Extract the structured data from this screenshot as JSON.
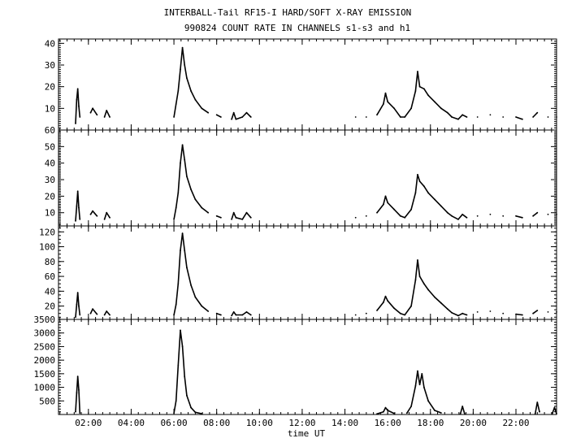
{
  "figure": {
    "title": "INTERBALL-Tail RF15-I HARD/SOFT X-RAY EMISSION",
    "subtitle": "990824  COUNT RATE IN CHANNELS s1-s3 and h1",
    "xlabel": "time UT",
    "x_ticks": [
      "02:00",
      "04:00",
      "06:00",
      "08:00",
      "10:00",
      "12:00",
      "14:00",
      "16:00",
      "18:00",
      "20:00",
      "22:00"
    ]
  },
  "chart_data": [
    {
      "type": "line",
      "panel": "s1",
      "xlim": [
        0.6,
        23.9
      ],
      "ylim": [
        0,
        42
      ],
      "yticks": [
        10,
        20,
        30,
        40
      ],
      "ytick_labels": [
        "10",
        "20",
        "30",
        "40"
      ],
      "grid": false,
      "series": [
        {
          "color": "#000000",
          "points": [
            [
              1.4,
              3
            ],
            [
              1.45,
              14
            ],
            [
              1.5,
              19
            ],
            [
              1.55,
              11
            ],
            [
              1.6,
              6
            ],
            [
              2.1,
              8
            ],
            [
              2.2,
              10
            ],
            [
              2.4,
              7
            ],
            [
              2.75,
              6
            ],
            [
              2.85,
              9
            ],
            [
              3.0,
              6
            ],
            [
              6.0,
              6
            ],
            [
              6.1,
              12
            ],
            [
              6.2,
              18
            ],
            [
              6.3,
              28
            ],
            [
              6.4,
              38
            ],
            [
              6.5,
              30
            ],
            [
              6.6,
              24
            ],
            [
              6.8,
              18
            ],
            [
              7.0,
              14
            ],
            [
              7.3,
              10
            ],
            [
              7.6,
              8
            ],
            [
              8.0,
              7
            ],
            [
              8.2,
              6
            ],
            [
              8.7,
              5
            ],
            [
              8.8,
              8
            ],
            [
              8.9,
              5
            ],
            [
              9.2,
              6
            ],
            [
              9.4,
              8
            ],
            [
              9.6,
              6
            ],
            [
              14.5,
              6
            ],
            [
              15.0,
              6
            ],
            [
              15.5,
              7
            ],
            [
              15.8,
              12
            ],
            [
              15.9,
              17
            ],
            [
              16.0,
              13
            ],
            [
              16.3,
              10
            ],
            [
              16.6,
              6
            ],
            [
              16.8,
              6
            ],
            [
              17.1,
              10
            ],
            [
              17.3,
              18
            ],
            [
              17.4,
              27
            ],
            [
              17.5,
              20
            ],
            [
              17.7,
              19
            ],
            [
              17.9,
              16
            ],
            [
              18.2,
              13
            ],
            [
              18.5,
              10
            ],
            [
              18.8,
              8
            ],
            [
              19.0,
              6
            ],
            [
              19.3,
              5
            ],
            [
              19.5,
              7
            ],
            [
              19.7,
              6
            ],
            [
              20.2,
              6
            ],
            [
              20.8,
              7
            ],
            [
              21.4,
              6
            ],
            [
              22.0,
              6
            ],
            [
              22.3,
              5
            ],
            [
              22.8,
              6
            ],
            [
              23.0,
              8
            ],
            [
              23.5,
              6
            ],
            [
              23.9,
              6
            ]
          ]
        }
      ]
    },
    {
      "type": "line",
      "panel": "s2",
      "xlim": [
        0.6,
        23.9
      ],
      "ylim": [
        2,
        60
      ],
      "yticks": [
        10,
        20,
        30,
        40,
        50,
        60
      ],
      "ytick_labels": [
        "10",
        "20",
        "30",
        "40",
        "50",
        "60"
      ],
      "grid": false,
      "series": [
        {
          "color": "#000000",
          "points": [
            [
              1.4,
              5
            ],
            [
              1.45,
              14
            ],
            [
              1.5,
              23
            ],
            [
              1.55,
              13
            ],
            [
              1.6,
              6
            ],
            [
              2.1,
              9
            ],
            [
              2.2,
              11
            ],
            [
              2.4,
              8
            ],
            [
              2.75,
              6
            ],
            [
              2.85,
              10
            ],
            [
              3.0,
              7
            ],
            [
              6.0,
              6
            ],
            [
              6.1,
              13
            ],
            [
              6.2,
              22
            ],
            [
              6.3,
              40
            ],
            [
              6.4,
              51
            ],
            [
              6.5,
              42
            ],
            [
              6.6,
              32
            ],
            [
              6.8,
              24
            ],
            [
              7.0,
              18
            ],
            [
              7.3,
              13
            ],
            [
              7.6,
              10
            ],
            [
              8.0,
              8
            ],
            [
              8.2,
              7
            ],
            [
              8.7,
              6
            ],
            [
              8.8,
              10
            ],
            [
              8.9,
              7
            ],
            [
              9.2,
              6
            ],
            [
              9.4,
              10
            ],
            [
              9.6,
              7
            ],
            [
              14.5,
              7
            ],
            [
              15.0,
              8
            ],
            [
              15.5,
              10
            ],
            [
              15.8,
              15
            ],
            [
              15.9,
              20
            ],
            [
              16.0,
              16
            ],
            [
              16.3,
              12
            ],
            [
              16.6,
              8
            ],
            [
              16.8,
              7
            ],
            [
              17.1,
              12
            ],
            [
              17.3,
              22
            ],
            [
              17.4,
              33
            ],
            [
              17.5,
              29
            ],
            [
              17.7,
              26
            ],
            [
              17.9,
              22
            ],
            [
              18.2,
              18
            ],
            [
              18.5,
              14
            ],
            [
              18.8,
              10
            ],
            [
              19.0,
              8
            ],
            [
              19.3,
              6
            ],
            [
              19.5,
              9
            ],
            [
              19.7,
              7
            ],
            [
              20.2,
              8
            ],
            [
              20.8,
              9
            ],
            [
              21.4,
              8
            ],
            [
              22.0,
              8
            ],
            [
              22.3,
              7
            ],
            [
              22.8,
              8
            ],
            [
              23.0,
              10
            ],
            [
              23.5,
              9
            ],
            [
              23.9,
              9
            ]
          ]
        }
      ]
    },
    {
      "type": "line",
      "panel": "s3",
      "xlim": [
        0.6,
        23.9
      ],
      "ylim": [
        2,
        128
      ],
      "yticks": [
        20,
        40,
        60,
        80,
        100,
        120
      ],
      "ytick_labels": [
        "20",
        "40",
        "60",
        "80",
        "100",
        "120"
      ],
      "grid": false,
      "series": [
        {
          "color": "#000000",
          "points": [
            [
              1.4,
              5
            ],
            [
              1.45,
              22
            ],
            [
              1.5,
              38
            ],
            [
              1.55,
              20
            ],
            [
              1.6,
              8
            ],
            [
              2.1,
              10
            ],
            [
              2.2,
              16
            ],
            [
              2.4,
              9
            ],
            [
              2.75,
              8
            ],
            [
              2.85,
              13
            ],
            [
              3.0,
              8
            ],
            [
              6.0,
              8
            ],
            [
              6.1,
              22
            ],
            [
              6.2,
              50
            ],
            [
              6.3,
              95
            ],
            [
              6.4,
              118
            ],
            [
              6.5,
              95
            ],
            [
              6.6,
              72
            ],
            [
              6.8,
              48
            ],
            [
              7.0,
              32
            ],
            [
              7.3,
              20
            ],
            [
              7.6,
              13
            ],
            [
              8.0,
              10
            ],
            [
              8.2,
              8
            ],
            [
              8.7,
              7
            ],
            [
              8.8,
              12
            ],
            [
              8.9,
              8
            ],
            [
              9.2,
              8
            ],
            [
              9.4,
              12
            ],
            [
              9.6,
              8
            ],
            [
              14.5,
              8
            ],
            [
              15.0,
              10
            ],
            [
              15.5,
              14
            ],
            [
              15.8,
              25
            ],
            [
              15.9,
              33
            ],
            [
              16.0,
              27
            ],
            [
              16.3,
              17
            ],
            [
              16.6,
              10
            ],
            [
              16.8,
              8
            ],
            [
              17.1,
              20
            ],
            [
              17.3,
              55
            ],
            [
              17.4,
              82
            ],
            [
              17.5,
              60
            ],
            [
              17.7,
              50
            ],
            [
              17.9,
              42
            ],
            [
              18.2,
              32
            ],
            [
              18.5,
              24
            ],
            [
              18.8,
              16
            ],
            [
              19.0,
              11
            ],
            [
              19.3,
              7
            ],
            [
              19.5,
              10
            ],
            [
              19.7,
              8
            ],
            [
              20.2,
              12
            ],
            [
              20.8,
              13
            ],
            [
              21.4,
              10
            ],
            [
              22.0,
              9
            ],
            [
              22.3,
              8
            ],
            [
              22.8,
              10
            ],
            [
              23.0,
              14
            ],
            [
              23.5,
              12
            ],
            [
              23.9,
              12
            ]
          ]
        }
      ]
    },
    {
      "type": "line",
      "panel": "h1",
      "xlim": [
        0.6,
        23.9
      ],
      "ylim": [
        0,
        3500
      ],
      "yticks": [
        500,
        1000,
        1500,
        2000,
        2500,
        3000,
        3500
      ],
      "ytick_labels": [
        "500",
        "1000",
        "1500",
        "2000",
        "2500",
        "3000",
        "3500"
      ],
      "grid": false,
      "series": [
        {
          "color": "#000000",
          "points": [
            [
              1.4,
              100
            ],
            [
              1.45,
              800
            ],
            [
              1.5,
              1400
            ],
            [
              1.55,
              900
            ],
            [
              1.6,
              50
            ],
            [
              6.0,
              50
            ],
            [
              6.1,
              500
            ],
            [
              6.2,
              1800
            ],
            [
              6.3,
              3100
            ],
            [
              6.4,
              2500
            ],
            [
              6.5,
              1400
            ],
            [
              6.6,
              700
            ],
            [
              6.8,
              250
            ],
            [
              7.0,
              80
            ],
            [
              7.3,
              30
            ],
            [
              15.5,
              20
            ],
            [
              15.8,
              100
            ],
            [
              15.9,
              250
            ],
            [
              16.0,
              150
            ],
            [
              16.3,
              40
            ],
            [
              16.9,
              50
            ],
            [
              17.1,
              300
            ],
            [
              17.3,
              1050
            ],
            [
              17.4,
              1600
            ],
            [
              17.5,
              1100
            ],
            [
              17.6,
              1500
            ],
            [
              17.7,
              1000
            ],
            [
              17.9,
              500
            ],
            [
              18.2,
              150
            ],
            [
              18.5,
              60
            ],
            [
              19.4,
              20
            ],
            [
              19.5,
              300
            ],
            [
              19.6,
              20
            ],
            [
              22.9,
              20
            ],
            [
              23.0,
              450
            ],
            [
              23.1,
              100
            ],
            [
              23.7,
              30
            ],
            [
              23.8,
              250
            ],
            [
              23.9,
              30
            ]
          ]
        }
      ]
    }
  ]
}
